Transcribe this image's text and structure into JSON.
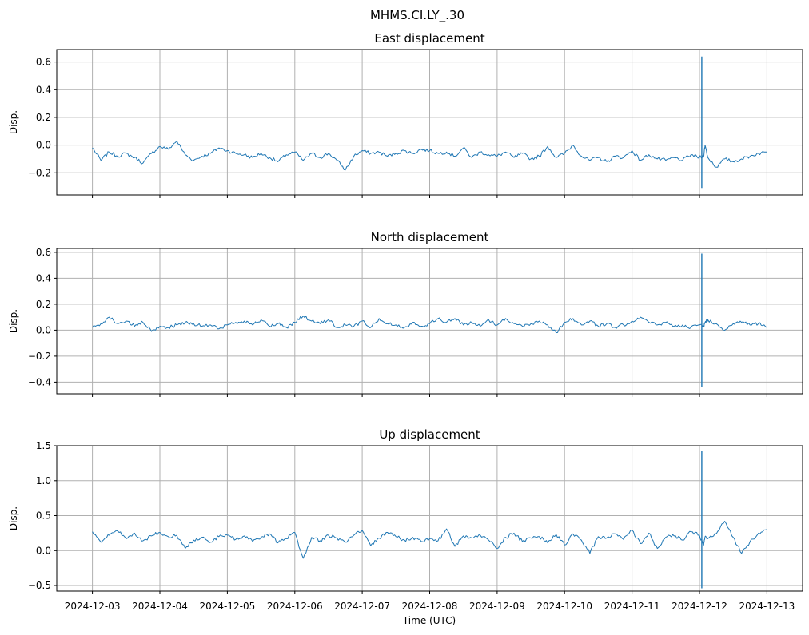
{
  "figure": {
    "suptitle": "MHMS.CI.LY_.30",
    "xlabel": "Time (UTC)",
    "line_color": "#1f77b4",
    "grid": true
  },
  "chart_data": [
    {
      "type": "line",
      "title": "East displacement",
      "ylabel": "Disp.",
      "xlabel": "",
      "ylim": [
        -0.36,
        0.69
      ],
      "yticks": [
        -0.2,
        0.0,
        0.2,
        0.4,
        0.6
      ],
      "ytick_labels": [
        "−0.2",
        "0.0",
        "0.2",
        "0.4",
        "0.6"
      ],
      "xticks": [
        "2024-12-03",
        "2024-12-04",
        "2024-12-05",
        "2024-12-06",
        "2024-12-07",
        "2024-12-08",
        "2024-12-09",
        "2024-12-10",
        "2024-12-11",
        "2024-12-12",
        "2024-12-13"
      ],
      "show_xtick_labels": false,
      "series": [
        {
          "x": [
            "2024-12-03 00:00",
            "2024-12-03 03:00",
            "2024-12-03 06:00",
            "2024-12-03 09:00",
            "2024-12-03 12:00",
            "2024-12-03 15:00",
            "2024-12-03 18:00",
            "2024-12-03 21:00",
            "2024-12-04 00:00",
            "2024-12-04 03:00",
            "2024-12-04 06:00",
            "2024-12-04 09:00",
            "2024-12-04 12:00",
            "2024-12-04 15:00",
            "2024-12-04 18:00",
            "2024-12-04 21:00",
            "2024-12-05 00:00",
            "2024-12-05 03:00",
            "2024-12-05 06:00",
            "2024-12-05 09:00",
            "2024-12-05 12:00",
            "2024-12-05 15:00",
            "2024-12-05 18:00",
            "2024-12-05 21:00",
            "2024-12-06 00:00",
            "2024-12-06 03:00",
            "2024-12-06 06:00",
            "2024-12-06 09:00",
            "2024-12-06 12:00",
            "2024-12-06 15:00",
            "2024-12-06 18:00",
            "2024-12-06 21:00",
            "2024-12-07 00:00",
            "2024-12-07 03:00",
            "2024-12-07 06:00",
            "2024-12-07 09:00",
            "2024-12-07 12:00",
            "2024-12-07 15:00",
            "2024-12-07 18:00",
            "2024-12-07 21:00",
            "2024-12-08 00:00",
            "2024-12-08 03:00",
            "2024-12-08 06:00",
            "2024-12-08 09:00",
            "2024-12-08 12:00",
            "2024-12-08 15:00",
            "2024-12-08 18:00",
            "2024-12-08 21:00",
            "2024-12-09 00:00",
            "2024-12-09 03:00",
            "2024-12-09 06:00",
            "2024-12-09 09:00",
            "2024-12-09 12:00",
            "2024-12-09 15:00",
            "2024-12-09 18:00",
            "2024-12-09 21:00",
            "2024-12-10 00:00",
            "2024-12-10 03:00",
            "2024-12-10 06:00",
            "2024-12-10 09:00",
            "2024-12-10 12:00",
            "2024-12-10 15:00",
            "2024-12-10 18:00",
            "2024-12-10 21:00",
            "2024-12-11 00:00",
            "2024-12-11 03:00",
            "2024-12-11 06:00",
            "2024-12-11 09:00",
            "2024-12-11 12:00",
            "2024-12-11 15:00",
            "2024-12-11 18:00",
            "2024-12-11 21:00",
            "2024-12-12 00:00",
            "2024-12-12 01:30",
            "2024-12-12 02:00",
            "2024-12-12 03:00",
            "2024-12-12 06:00",
            "2024-12-12 09:00",
            "2024-12-12 12:00",
            "2024-12-12 15:00",
            "2024-12-12 18:00",
            "2024-12-12 21:00",
            "2024-12-13 00:00"
          ],
          "y": [
            -0.02,
            -0.11,
            -0.05,
            -0.08,
            -0.06,
            -0.09,
            -0.13,
            -0.06,
            -0.01,
            -0.03,
            0.03,
            -0.07,
            -0.11,
            -0.08,
            -0.06,
            -0.02,
            -0.04,
            -0.06,
            -0.07,
            -0.09,
            -0.06,
            -0.09,
            -0.12,
            -0.07,
            -0.05,
            -0.11,
            -0.06,
            -0.09,
            -0.06,
            -0.11,
            -0.18,
            -0.08,
            -0.04,
            -0.06,
            -0.05,
            -0.08,
            -0.06,
            -0.04,
            -0.06,
            -0.03,
            -0.04,
            -0.06,
            -0.05,
            -0.08,
            -0.02,
            -0.09,
            -0.05,
            -0.07,
            -0.08,
            -0.05,
            -0.09,
            -0.06,
            -0.1,
            -0.08,
            -0.01,
            -0.09,
            -0.06,
            0.0,
            -0.08,
            -0.11,
            -0.09,
            -0.12,
            -0.08,
            -0.09,
            -0.04,
            -0.11,
            -0.07,
            -0.1,
            -0.11,
            -0.09,
            -0.11,
            -0.07,
            -0.09,
            -0.08,
            0.0,
            -0.09,
            -0.16,
            -0.1,
            -0.12,
            -0.1,
            -0.08,
            -0.06,
            -0.05
          ]
        }
      ],
      "spike": {
        "x": "2024-12-12 00:50",
        "ymin": -0.31,
        "ymax": 0.64
      }
    },
    {
      "type": "line",
      "title": "North displacement",
      "ylabel": "Disp.",
      "xlabel": "",
      "ylim": [
        -0.49,
        0.63
      ],
      "yticks": [
        -0.4,
        -0.2,
        0.0,
        0.2,
        0.4,
        0.6
      ],
      "ytick_labels": [
        "−0.4",
        "−0.2",
        "0.0",
        "0.2",
        "0.4",
        "0.6"
      ],
      "xticks": [
        "2024-12-03",
        "2024-12-04",
        "2024-12-05",
        "2024-12-06",
        "2024-12-07",
        "2024-12-08",
        "2024-12-09",
        "2024-12-10",
        "2024-12-11",
        "2024-12-12",
        "2024-12-13"
      ],
      "show_xtick_labels": false,
      "series": [
        {
          "x": [
            "2024-12-03 00:00",
            "2024-12-03 03:00",
            "2024-12-03 06:00",
            "2024-12-03 09:00",
            "2024-12-03 12:00",
            "2024-12-03 15:00",
            "2024-12-03 18:00",
            "2024-12-03 21:00",
            "2024-12-04 00:00",
            "2024-12-04 03:00",
            "2024-12-04 06:00",
            "2024-12-04 09:00",
            "2024-12-04 12:00",
            "2024-12-04 15:00",
            "2024-12-04 18:00",
            "2024-12-04 21:00",
            "2024-12-05 00:00",
            "2024-12-05 03:00",
            "2024-12-05 06:00",
            "2024-12-05 09:00",
            "2024-12-05 12:00",
            "2024-12-05 15:00",
            "2024-12-05 18:00",
            "2024-12-05 21:00",
            "2024-12-06 00:00",
            "2024-12-06 03:00",
            "2024-12-06 06:00",
            "2024-12-06 09:00",
            "2024-12-06 12:00",
            "2024-12-06 15:00",
            "2024-12-06 18:00",
            "2024-12-06 21:00",
            "2024-12-07 00:00",
            "2024-12-07 03:00",
            "2024-12-07 06:00",
            "2024-12-07 09:00",
            "2024-12-07 12:00",
            "2024-12-07 15:00",
            "2024-12-07 18:00",
            "2024-12-07 21:00",
            "2024-12-08 00:00",
            "2024-12-08 03:00",
            "2024-12-08 06:00",
            "2024-12-08 09:00",
            "2024-12-08 12:00",
            "2024-12-08 15:00",
            "2024-12-08 18:00",
            "2024-12-08 21:00",
            "2024-12-09 00:00",
            "2024-12-09 03:00",
            "2024-12-09 06:00",
            "2024-12-09 09:00",
            "2024-12-09 12:00",
            "2024-12-09 15:00",
            "2024-12-09 18:00",
            "2024-12-09 21:00",
            "2024-12-10 00:00",
            "2024-12-10 03:00",
            "2024-12-10 06:00",
            "2024-12-10 09:00",
            "2024-12-10 12:00",
            "2024-12-10 15:00",
            "2024-12-10 18:00",
            "2024-12-10 21:00",
            "2024-12-11 00:00",
            "2024-12-11 03:00",
            "2024-12-11 06:00",
            "2024-12-11 09:00",
            "2024-12-11 12:00",
            "2024-12-11 15:00",
            "2024-12-11 18:00",
            "2024-12-11 21:00",
            "2024-12-12 00:00",
            "2024-12-12 01:30",
            "2024-12-12 02:00",
            "2024-12-12 03:00",
            "2024-12-12 06:00",
            "2024-12-12 09:00",
            "2024-12-12 12:00",
            "2024-12-12 15:00",
            "2024-12-12 18:00",
            "2024-12-12 21:00",
            "2024-12-13 00:00"
          ],
          "y": [
            0.02,
            0.05,
            0.1,
            0.05,
            0.07,
            0.03,
            0.06,
            -0.01,
            0.03,
            0.02,
            0.04,
            0.06,
            0.05,
            0.03,
            0.04,
            0.01,
            0.04,
            0.06,
            0.07,
            0.04,
            0.08,
            0.03,
            0.05,
            0.02,
            0.06,
            0.11,
            0.07,
            0.05,
            0.08,
            0.02,
            0.04,
            0.03,
            0.07,
            0.02,
            0.09,
            0.05,
            0.04,
            0.02,
            0.06,
            0.03,
            0.05,
            0.09,
            0.06,
            0.09,
            0.04,
            0.06,
            0.03,
            0.08,
            0.04,
            0.09,
            0.05,
            0.03,
            0.05,
            0.07,
            0.04,
            -0.02,
            0.06,
            0.09,
            0.04,
            0.07,
            0.03,
            0.05,
            0.02,
            0.04,
            0.07,
            0.1,
            0.06,
            0.04,
            0.06,
            0.03,
            0.04,
            0.02,
            0.04,
            0.03,
            0.06,
            0.08,
            0.05,
            0.0,
            0.05,
            0.06,
            0.04,
            0.05,
            0.02
          ]
        }
      ],
      "spike": {
        "x": "2024-12-12 00:50",
        "ymin": -0.44,
        "ymax": 0.59
      }
    },
    {
      "type": "line",
      "title": "Up displacement",
      "ylabel": "Disp.",
      "xlabel": "Time (UTC)",
      "ylim": [
        -0.58,
        1.5
      ],
      "yticks": [
        -0.5,
        0.0,
        0.5,
        1.0,
        1.5
      ],
      "ytick_labels": [
        "−0.5",
        "0.0",
        "0.5",
        "1.0",
        "1.5"
      ],
      "xticks": [
        "2024-12-03",
        "2024-12-04",
        "2024-12-05",
        "2024-12-06",
        "2024-12-07",
        "2024-12-08",
        "2024-12-09",
        "2024-12-10",
        "2024-12-11",
        "2024-12-12",
        "2024-12-13"
      ],
      "show_xtick_labels": true,
      "series": [
        {
          "x": [
            "2024-12-03 00:00",
            "2024-12-03 03:00",
            "2024-12-03 06:00",
            "2024-12-03 09:00",
            "2024-12-03 12:00",
            "2024-12-03 15:00",
            "2024-12-03 18:00",
            "2024-12-03 21:00",
            "2024-12-04 00:00",
            "2024-12-04 03:00",
            "2024-12-04 06:00",
            "2024-12-04 09:00",
            "2024-12-04 12:00",
            "2024-12-04 15:00",
            "2024-12-04 18:00",
            "2024-12-04 21:00",
            "2024-12-05 00:00",
            "2024-12-05 03:00",
            "2024-12-05 06:00",
            "2024-12-05 09:00",
            "2024-12-05 12:00",
            "2024-12-05 15:00",
            "2024-12-05 18:00",
            "2024-12-05 21:00",
            "2024-12-06 00:00",
            "2024-12-06 03:00",
            "2024-12-06 06:00",
            "2024-12-06 09:00",
            "2024-12-06 12:00",
            "2024-12-06 15:00",
            "2024-12-06 18:00",
            "2024-12-06 21:00",
            "2024-12-07 00:00",
            "2024-12-07 03:00",
            "2024-12-07 06:00",
            "2024-12-07 09:00",
            "2024-12-07 12:00",
            "2024-12-07 15:00",
            "2024-12-07 18:00",
            "2024-12-07 21:00",
            "2024-12-08 00:00",
            "2024-12-08 03:00",
            "2024-12-08 06:00",
            "2024-12-08 09:00",
            "2024-12-08 12:00",
            "2024-12-08 15:00",
            "2024-12-08 18:00",
            "2024-12-08 21:00",
            "2024-12-09 00:00",
            "2024-12-09 03:00",
            "2024-12-09 06:00",
            "2024-12-09 09:00",
            "2024-12-09 12:00",
            "2024-12-09 15:00",
            "2024-12-09 18:00",
            "2024-12-09 21:00",
            "2024-12-10 00:00",
            "2024-12-10 03:00",
            "2024-12-10 06:00",
            "2024-12-10 09:00",
            "2024-12-10 12:00",
            "2024-12-10 15:00",
            "2024-12-10 18:00",
            "2024-12-10 21:00",
            "2024-12-11 00:00",
            "2024-12-11 03:00",
            "2024-12-11 06:00",
            "2024-12-11 09:00",
            "2024-12-11 12:00",
            "2024-12-11 15:00",
            "2024-12-11 18:00",
            "2024-12-11 21:00",
            "2024-12-12 00:00",
            "2024-12-12 01:30",
            "2024-12-12 02:00",
            "2024-12-12 03:00",
            "2024-12-12 06:00",
            "2024-12-12 09:00",
            "2024-12-12 12:00",
            "2024-12-12 15:00",
            "2024-12-12 18:00",
            "2024-12-12 21:00",
            "2024-12-13 00:00"
          ],
          "y": [
            0.27,
            0.12,
            0.22,
            0.28,
            0.17,
            0.25,
            0.14,
            0.21,
            0.26,
            0.2,
            0.22,
            0.03,
            0.15,
            0.19,
            0.12,
            0.2,
            0.22,
            0.16,
            0.21,
            0.13,
            0.19,
            0.24,
            0.11,
            0.17,
            0.26,
            -0.11,
            0.19,
            0.14,
            0.22,
            0.18,
            0.12,
            0.22,
            0.29,
            0.07,
            0.18,
            0.26,
            0.2,
            0.15,
            0.19,
            0.13,
            0.17,
            0.14,
            0.31,
            0.06,
            0.21,
            0.18,
            0.22,
            0.15,
            0.03,
            0.19,
            0.25,
            0.13,
            0.18,
            0.2,
            0.11,
            0.23,
            0.08,
            0.24,
            0.15,
            -0.04,
            0.2,
            0.18,
            0.24,
            0.16,
            0.29,
            0.1,
            0.25,
            0.03,
            0.19,
            0.21,
            0.15,
            0.27,
            0.22,
            0.08,
            0.2,
            0.17,
            0.24,
            0.42,
            0.19,
            -0.04,
            0.13,
            0.25,
            0.3
          ]
        }
      ],
      "spike": {
        "x": "2024-12-12 00:50",
        "ymin": -0.54,
        "ymax": 1.42
      }
    }
  ]
}
